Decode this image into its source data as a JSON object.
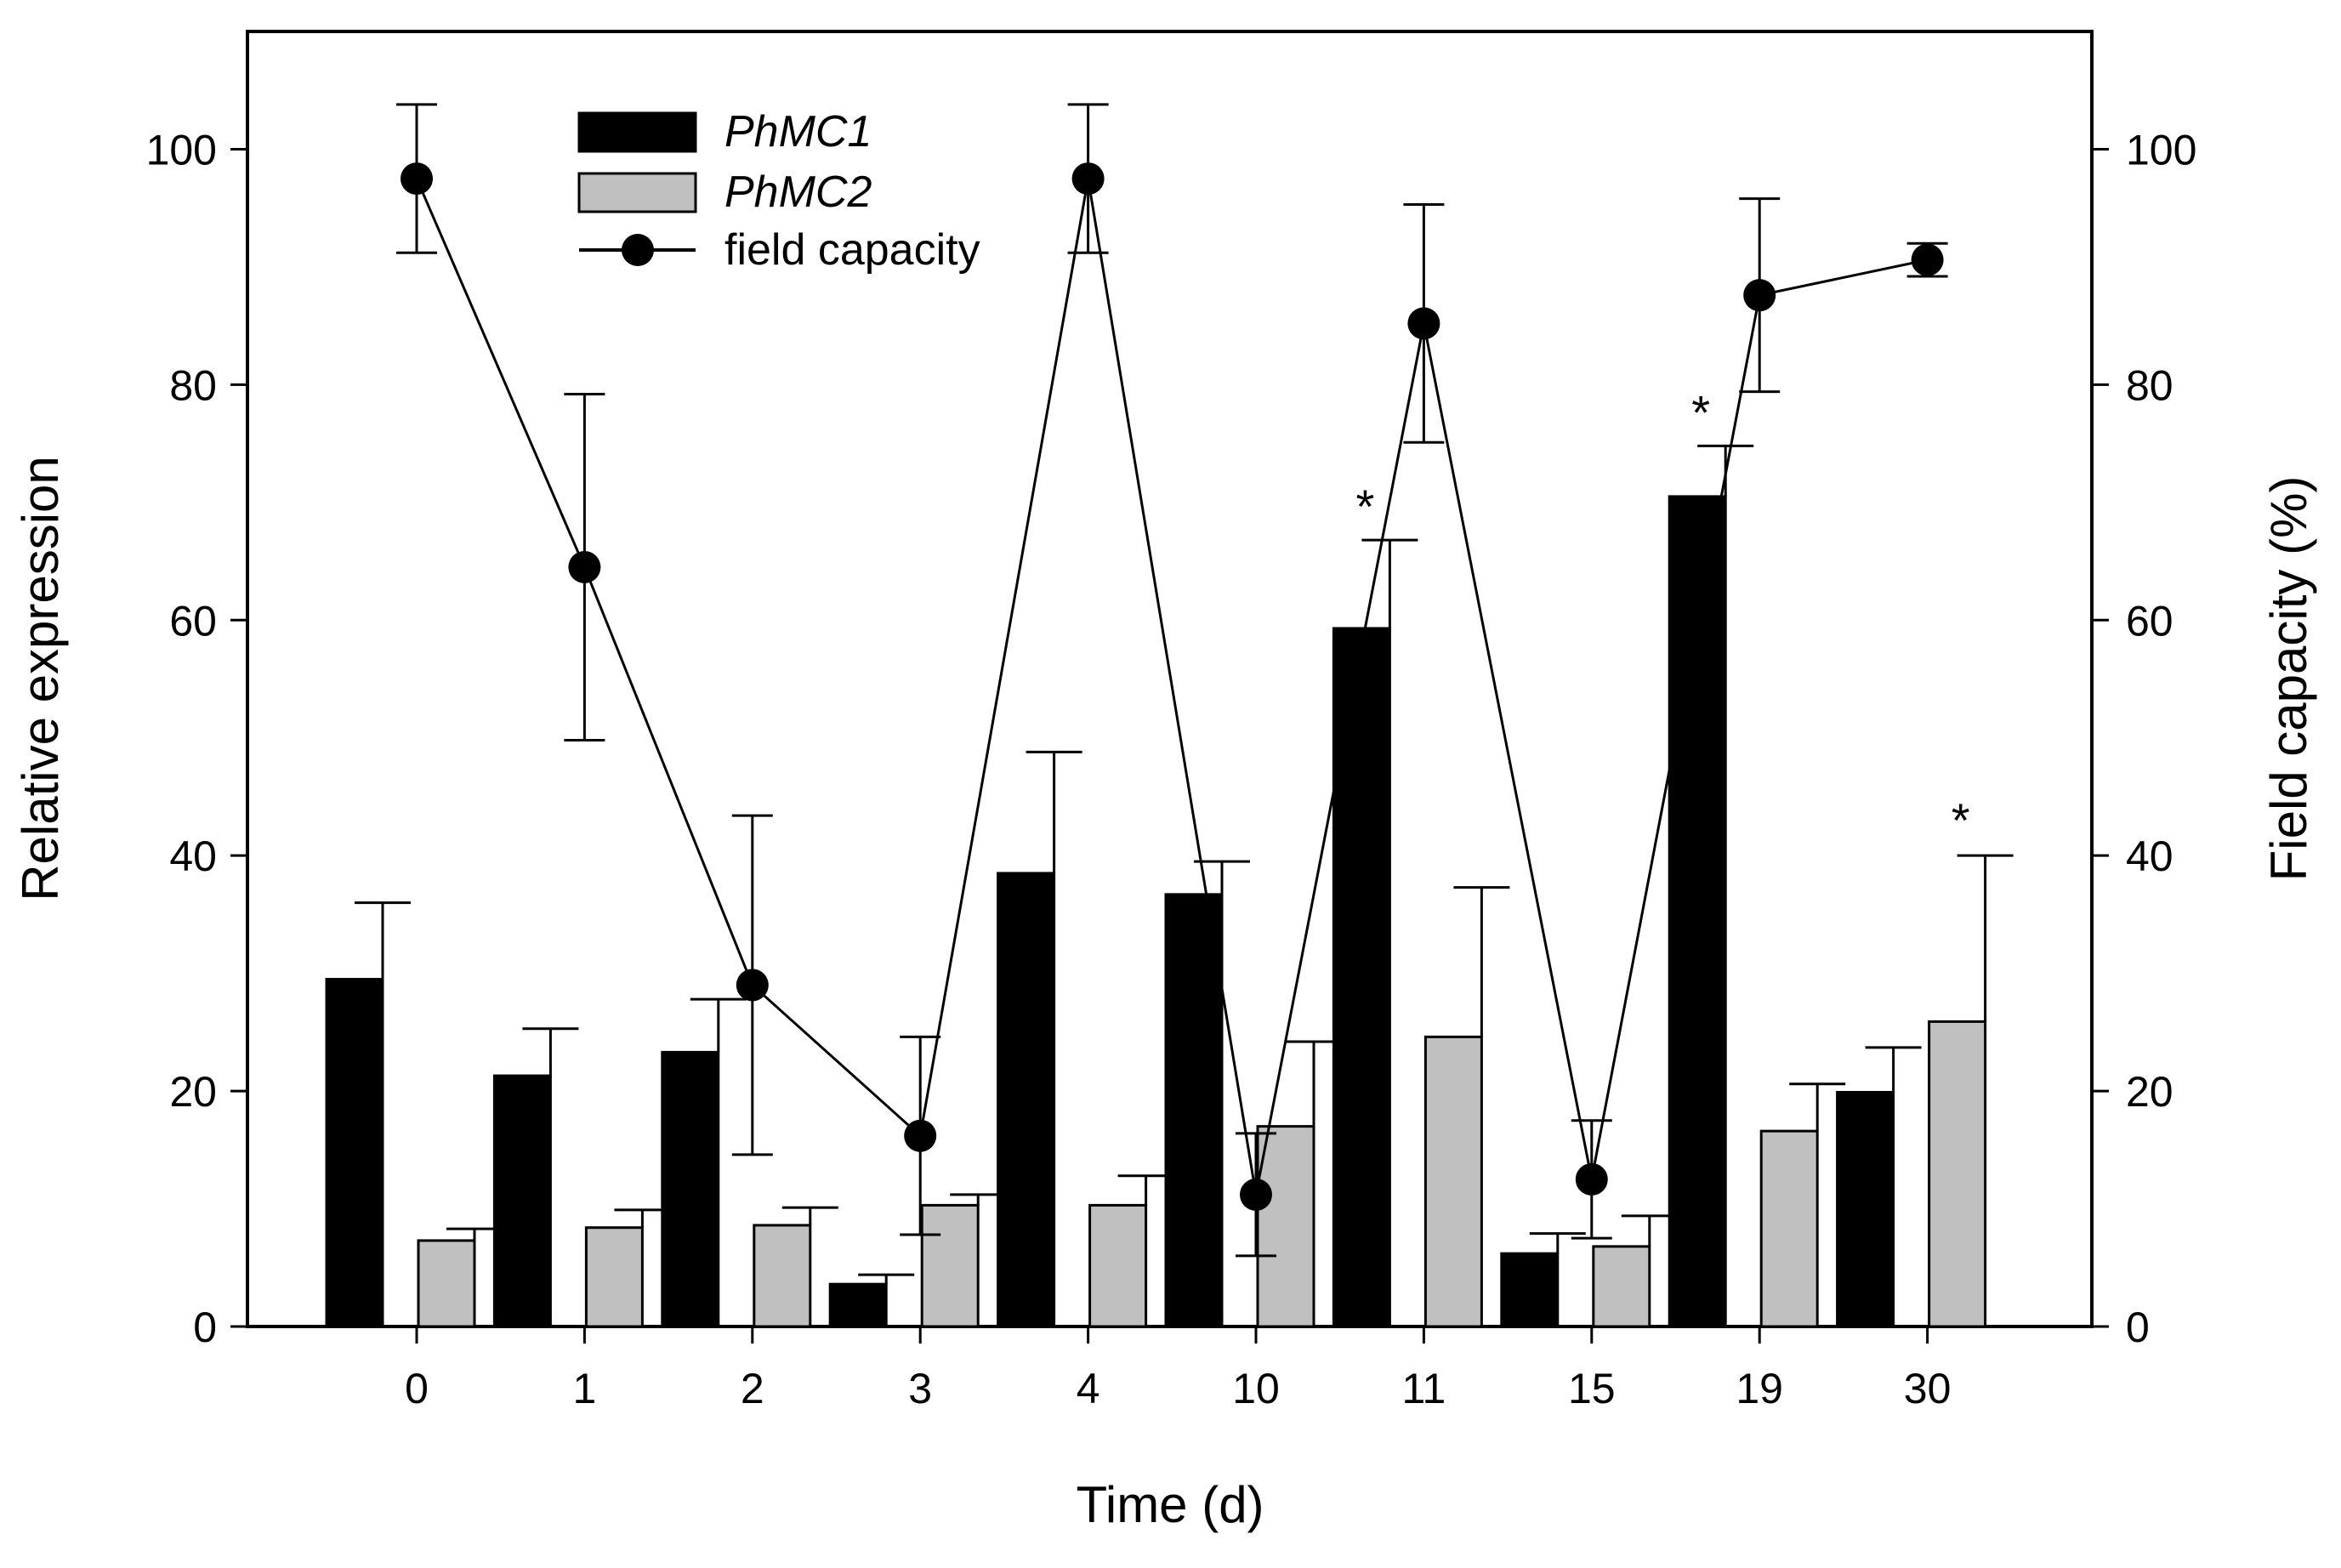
{
  "chart_data": {
    "type": "bar",
    "title": "",
    "xlabel": "Time (d)",
    "ylabel": "Relative expression",
    "y2label": "Field capacity (%)",
    "categories": [
      "0",
      "1",
      "2",
      "3",
      "4",
      "10",
      "11",
      "15",
      "19",
      "30"
    ],
    "ylim": [
      0,
      110
    ],
    "y2lim": [
      0,
      110
    ],
    "yticks": [
      "0",
      "20",
      "40",
      "60",
      "80",
      "100"
    ],
    "y2ticks": [
      "0",
      "20",
      "40",
      "60",
      "80",
      "100"
    ],
    "legend_position": "top-left",
    "series": [
      {
        "name": "PhMC1",
        "type": "bar",
        "color": "#000000",
        "values": [
          29.5,
          21.3,
          23.3,
          3.6,
          38.5,
          36.7,
          59.3,
          6.2,
          70.5,
          19.9
        ],
        "errors": [
          6.5,
          4.0,
          4.5,
          0.8,
          10.3,
          2.8,
          7.5,
          1.7,
          4.3,
          3.8
        ],
        "significant": [
          false,
          false,
          false,
          false,
          false,
          false,
          true,
          false,
          true,
          false
        ]
      },
      {
        "name": "PhMC2",
        "type": "bar",
        "color": "#c0c0c0",
        "values": [
          7.3,
          8.4,
          8.6,
          10.3,
          10.3,
          17.0,
          24.6,
          6.8,
          16.6,
          25.9
        ],
        "errors": [
          1.0,
          1.5,
          1.5,
          0.9,
          2.5,
          7.2,
          12.7,
          2.6,
          4.0,
          14.1
        ],
        "significant": [
          false,
          false,
          false,
          false,
          false,
          false,
          false,
          false,
          false,
          true
        ]
      },
      {
        "name": "field capacity",
        "type": "line",
        "color": "#000000",
        "values": [
          97.5,
          64.5,
          29.0,
          16.2,
          97.5,
          11.2,
          85.2,
          12.5,
          87.6,
          90.6
        ],
        "errors": [
          6.3,
          14.7,
          14.4,
          8.4,
          6.3,
          5.2,
          10.1,
          5.0,
          8.2,
          1.4
        ]
      }
    ],
    "significance_marker": "*"
  }
}
